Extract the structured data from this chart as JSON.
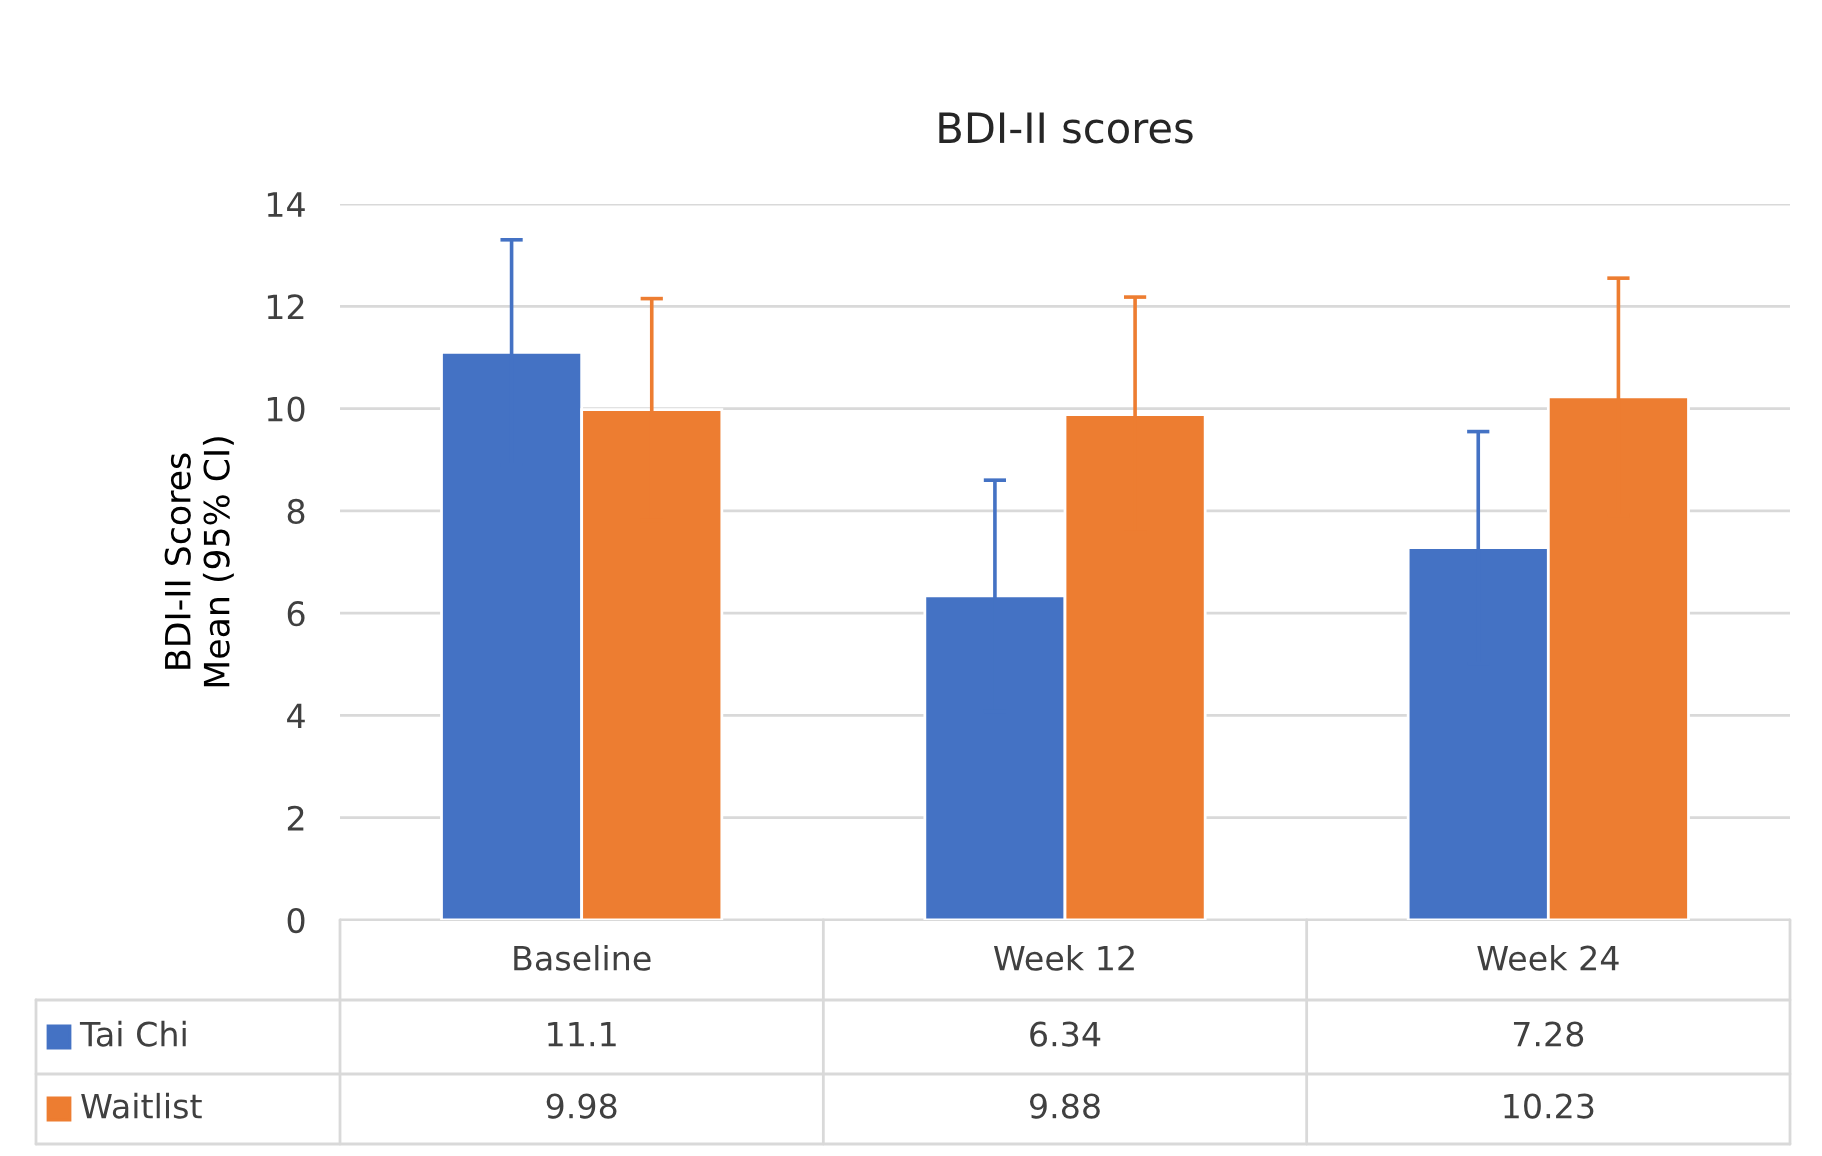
{
  "chart_data": {
    "type": "bar",
    "title": "BDI-II scores",
    "ylabel": "BDI-II Scores\nMean (95% CI)",
    "categories": [
      "Baseline",
      "Week 12",
      "Week 24"
    ],
    "series": [
      {
        "name": "Tai Chi",
        "color": "#4472c4",
        "values": [
          11.1,
          6.34,
          7.28
        ],
        "errors": [
          2.2,
          2.26,
          2.27
        ]
      },
      {
        "name": "Waitlist",
        "color": "#ed7d31",
        "values": [
          9.98,
          9.88,
          10.23
        ],
        "errors": [
          2.17,
          2.3,
          2.32
        ]
      }
    ],
    "ylim": [
      0,
      14
    ],
    "yticks": [
      0,
      2,
      4,
      6,
      8,
      10,
      12,
      14
    ],
    "grid": "y",
    "legend": "bottom",
    "data_labels": true
  }
}
